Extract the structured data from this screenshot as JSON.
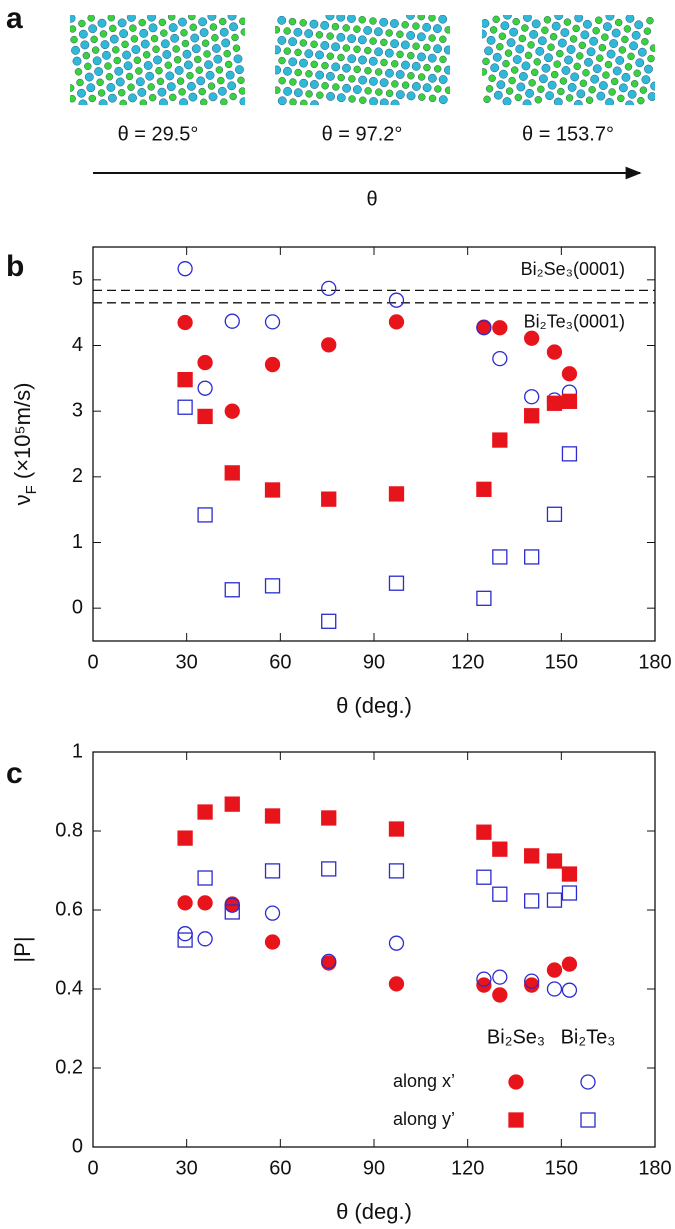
{
  "panels": {
    "a": {
      "label": "a",
      "captions": [
        "θ = 29.5°",
        "θ = 97.2°",
        "θ = 153.7°"
      ],
      "arrow_label": "θ"
    }
  },
  "chart_data": [
    {
      "type": "scatter",
      "label": "b",
      "xlabel": "θ (deg.)",
      "ylabel": {
        "symbol": "ν",
        "subscript": "F",
        "text": " (×10⁵m/s)"
      },
      "xlim": [
        0,
        180
      ],
      "xticks": [
        0,
        30,
        60,
        90,
        120,
        150,
        180
      ],
      "ylim": [
        -0.5,
        5.5
      ],
      "yticks": [
        0,
        1,
        2,
        3,
        4,
        5
      ],
      "x": [
        29.5,
        35.9,
        44.6,
        57.5,
        75.5,
        97.2,
        125.2,
        130.3,
        140.5,
        147.8,
        152.6
      ],
      "series": [
        {
          "color": "#e8141c",
          "marker": "circle",
          "filled": true,
          "values": [
            4.35,
            3.74,
            3.0,
            3.71,
            4.01,
            4.36,
            4.28,
            4.27,
            4.11,
            3.9,
            3.57
          ]
        },
        {
          "color": "#2b2bd0",
          "marker": "circle",
          "filled": false,
          "values": [
            5.17,
            3.35,
            4.37,
            4.36,
            4.87,
            4.69,
            4.27,
            3.8,
            3.22,
            3.17,
            3.29
          ]
        },
        {
          "color": "#e8141c",
          "marker": "square",
          "filled": true,
          "values": [
            3.48,
            2.92,
            2.06,
            1.8,
            1.66,
            1.74,
            1.81,
            2.56,
            2.93,
            3.12,
            3.15
          ]
        },
        {
          "color": "#2b2bd0",
          "marker": "square",
          "filled": false,
          "values": [
            3.06,
            1.42,
            0.28,
            0.34,
            -0.2,
            0.38,
            0.15,
            0.78,
            0.78,
            1.43,
            2.35
          ]
        }
      ],
      "hlines": [
        {
          "value": 4.84,
          "label": "Bi₂Se₃(0001)"
        },
        {
          "value": 4.65,
          "label": "Bi₂Te₃(0001)"
        }
      ]
    },
    {
      "type": "scatter",
      "label": "c",
      "xlabel": "θ (deg.)",
      "ylabel": "|P|",
      "xlim": [
        0,
        180
      ],
      "xticks": [
        0,
        30,
        60,
        90,
        120,
        150,
        180
      ],
      "ylim": [
        0,
        1
      ],
      "yticks": [
        0,
        0.2,
        0.4,
        0.6,
        0.8,
        1
      ],
      "x": [
        29.5,
        35.9,
        44.6,
        57.5,
        75.5,
        97.2,
        125.2,
        130.3,
        140.5,
        147.8,
        152.6
      ],
      "legend": {
        "columns": [
          "Bi₂Se₃",
          "Bi₂Te₃"
        ],
        "rows": [
          "along x’",
          "along y’"
        ]
      },
      "series": [
        {
          "color": "#e8141c",
          "marker": "circle",
          "filled": true,
          "values": [
            0.618,
            0.618,
            0.615,
            0.519,
            0.466,
            0.413,
            0.41,
            0.385,
            0.41,
            0.448,
            0.463
          ]
        },
        {
          "color": "#2b2bd0",
          "marker": "circle",
          "filled": false,
          "values": [
            0.54,
            0.527,
            0.612,
            0.592,
            0.47,
            0.516,
            0.425,
            0.43,
            0.42,
            0.4,
            0.397
          ]
        },
        {
          "color": "#e8141c",
          "marker": "square",
          "filled": true,
          "values": [
            0.782,
            0.848,
            0.868,
            0.838,
            0.833,
            0.805,
            0.797,
            0.754,
            0.737,
            0.724,
            0.691
          ]
        },
        {
          "color": "#2b2bd0",
          "marker": "square",
          "filled": false,
          "values": [
            0.524,
            0.681,
            0.595,
            0.699,
            0.704,
            0.699,
            0.683,
            0.64,
            0.623,
            0.625,
            0.643
          ]
        }
      ]
    }
  ]
}
